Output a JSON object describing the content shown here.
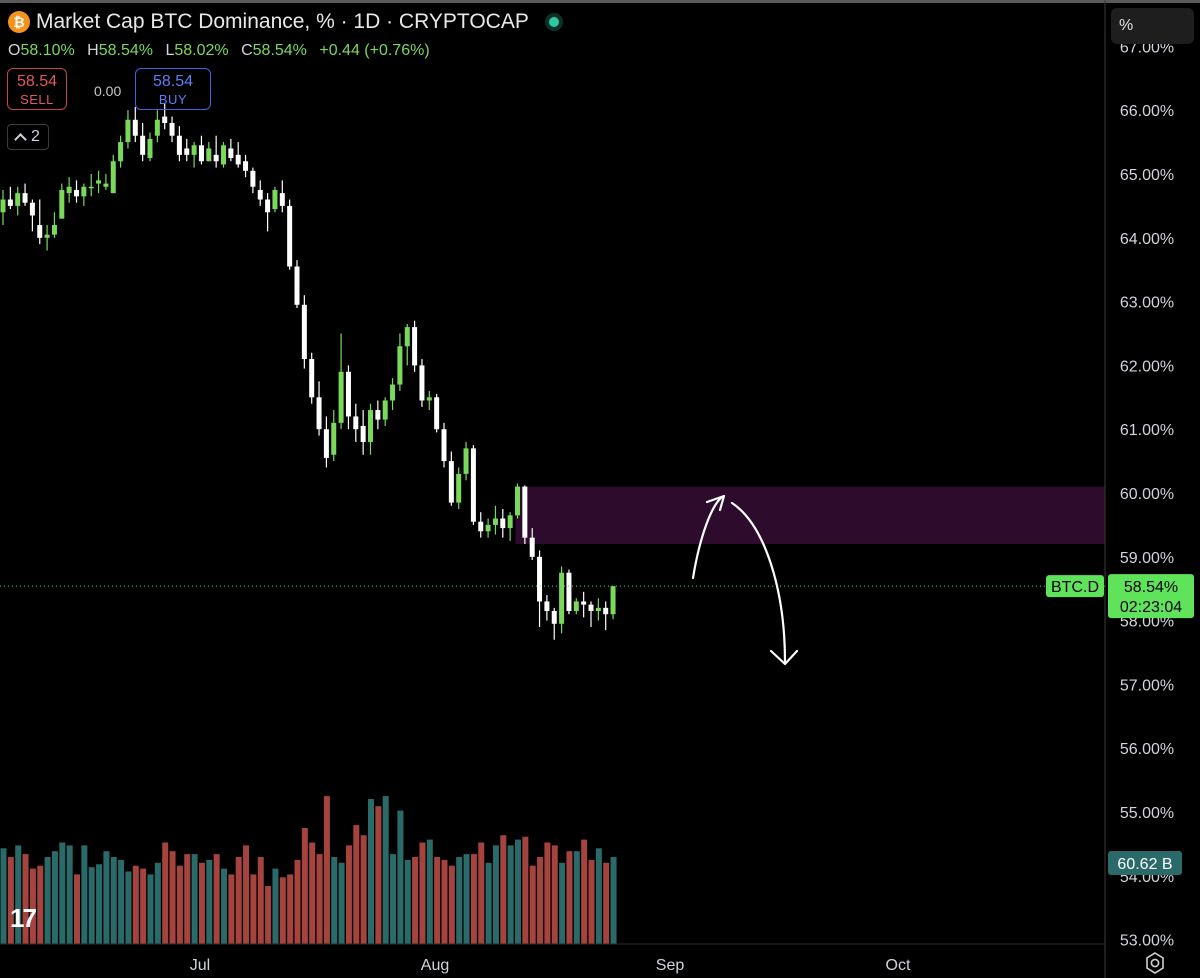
{
  "header": {
    "title": "Market Cap BTC Dominance, % · 1D · CRYPTOCAP",
    "logo_text": "₿"
  },
  "ohlc": {
    "o_key": "O",
    "o": "58.10%",
    "h_key": "H",
    "h": "58.54%",
    "l_key": "L",
    "l": "58.02%",
    "c_key": "C",
    "c": "58.54%",
    "change": "+0.44 (+0.76%)"
  },
  "trade": {
    "sell_price": "58.54",
    "sell_label": "SELL",
    "spread": "0.00",
    "buy_price": "58.54",
    "buy_label": "BUY"
  },
  "indicators_count": "2",
  "scale_mode": "%",
  "colors": {
    "up": "#7ad95a",
    "down": "#ffffff",
    "vol_up": "#2a6b6a",
    "vol_down": "#a5443f",
    "zone": "#2d0b2c",
    "last_price_bg": "#5ee35b"
  },
  "chart_data": {
    "type": "candlestick",
    "title": "Market Cap BTC Dominance, %",
    "interval": "1D",
    "ylabel": "%",
    "ylim": [
      53.0,
      67.0
    ],
    "y_ticks": [
      "67.00%",
      "66.00%",
      "65.00%",
      "64.00%",
      "63.00%",
      "62.00%",
      "61.00%",
      "60.00%",
      "59.00%",
      "58.00%",
      "57.00%",
      "56.00%",
      "55.00%",
      "54.00%",
      "53.00%"
    ],
    "x_ticks": [
      "Jul",
      "Aug",
      "Sep",
      "Oct"
    ],
    "candles": [
      [
        64.4,
        64.75,
        64.2,
        64.6
      ],
      [
        64.6,
        64.8,
        64.45,
        64.5
      ],
      [
        64.5,
        64.8,
        64.35,
        64.7
      ],
      [
        64.7,
        64.85,
        64.5,
        64.55
      ],
      [
        64.55,
        64.6,
        64.1,
        64.35
      ],
      [
        64.2,
        64.6,
        63.9,
        64.0
      ],
      [
        64.0,
        64.2,
        63.8,
        64.05
      ],
      [
        64.05,
        64.4,
        64.0,
        64.2
      ],
      [
        64.3,
        64.85,
        64.3,
        64.75
      ],
      [
        64.7,
        64.95,
        64.55,
        64.8
      ],
      [
        64.75,
        64.9,
        64.55,
        64.65
      ],
      [
        64.65,
        64.85,
        64.5,
        64.8
      ],
      [
        64.8,
        65.0,
        64.65,
        64.8
      ],
      [
        64.85,
        65.05,
        64.7,
        64.9
      ],
      [
        64.8,
        65.0,
        64.75,
        64.85
      ],
      [
        64.7,
        65.3,
        64.7,
        65.2
      ],
      [
        65.2,
        65.6,
        65.1,
        65.5
      ],
      [
        65.5,
        66.0,
        65.4,
        65.85
      ],
      [
        65.85,
        66.05,
        65.5,
        65.6
      ],
      [
        65.6,
        65.8,
        65.2,
        65.3
      ],
      [
        65.25,
        65.65,
        65.2,
        65.55
      ],
      [
        65.6,
        66.0,
        65.5,
        65.85
      ],
      [
        65.9,
        66.1,
        65.7,
        65.8
      ],
      [
        65.8,
        65.9,
        65.5,
        65.6
      ],
      [
        65.6,
        65.75,
        65.2,
        65.3
      ],
      [
        65.4,
        65.55,
        65.2,
        65.3
      ],
      [
        65.3,
        65.5,
        65.1,
        65.45
      ],
      [
        65.45,
        65.6,
        65.15,
        65.2
      ],
      [
        65.2,
        65.5,
        65.2,
        65.4
      ],
      [
        65.3,
        65.6,
        65.1,
        65.2
      ],
      [
        65.15,
        65.5,
        65.1,
        65.45
      ],
      [
        65.4,
        65.55,
        65.2,
        65.25
      ],
      [
        65.3,
        65.5,
        65.1,
        65.15
      ],
      [
        65.2,
        65.3,
        64.95,
        65.05
      ],
      [
        65.05,
        65.1,
        64.7,
        64.8
      ],
      [
        64.75,
        64.9,
        64.5,
        64.6
      ],
      [
        64.6,
        64.7,
        64.1,
        64.4
      ],
      [
        64.45,
        64.8,
        64.4,
        64.75
      ],
      [
        64.7,
        64.9,
        64.4,
        64.5
      ],
      [
        64.5,
        64.6,
        63.5,
        63.55
      ],
      [
        63.55,
        63.65,
        62.9,
        62.95
      ],
      [
        62.95,
        63.1,
        61.95,
        62.1
      ],
      [
        62.1,
        62.2,
        61.4,
        61.5
      ],
      [
        61.5,
        61.75,
        60.9,
        61.0
      ],
      [
        61.0,
        61.2,
        60.4,
        60.55
      ],
      [
        60.6,
        61.3,
        60.5,
        61.1
      ],
      [
        61.1,
        62.5,
        61.0,
        61.9
      ],
      [
        61.9,
        62.0,
        61.0,
        61.2
      ],
      [
        61.2,
        61.4,
        60.8,
        61.0
      ],
      [
        61.05,
        61.3,
        60.6,
        60.8
      ],
      [
        60.8,
        61.4,
        60.6,
        61.3
      ],
      [
        61.3,
        61.45,
        61.0,
        61.15
      ],
      [
        61.15,
        61.5,
        61.05,
        61.45
      ],
      [
        61.45,
        61.8,
        61.3,
        61.7
      ],
      [
        61.7,
        62.5,
        61.6,
        62.3
      ],
      [
        62.3,
        62.65,
        62.0,
        62.6
      ],
      [
        62.6,
        62.7,
        61.9,
        62.0
      ],
      [
        62.0,
        62.1,
        61.35,
        61.45
      ],
      [
        61.45,
        61.6,
        61.3,
        61.5
      ],
      [
        61.5,
        61.55,
        60.95,
        61.0
      ],
      [
        61.0,
        61.1,
        60.4,
        60.5
      ],
      [
        60.5,
        60.65,
        59.8,
        59.85
      ],
      [
        59.85,
        60.4,
        59.75,
        60.3
      ],
      [
        60.3,
        60.8,
        60.2,
        60.7
      ],
      [
        60.7,
        60.75,
        59.5,
        59.55
      ],
      [
        59.55,
        59.7,
        59.3,
        59.4
      ],
      [
        59.4,
        59.6,
        59.3,
        59.5
      ],
      [
        59.5,
        59.8,
        59.35,
        59.6
      ],
      [
        59.6,
        59.75,
        59.3,
        59.45
      ],
      [
        59.45,
        59.7,
        59.25,
        59.65
      ],
      [
        59.65,
        60.15,
        59.6,
        60.1
      ],
      [
        60.1,
        60.12,
        59.2,
        59.3
      ],
      [
        59.3,
        59.45,
        58.95,
        59.0
      ],
      [
        59.0,
        59.1,
        57.9,
        58.3
      ],
      [
        58.3,
        58.4,
        58.0,
        58.15
      ],
      [
        58.15,
        58.2,
        57.7,
        57.95
      ],
      [
        57.95,
        58.85,
        57.8,
        58.75
      ],
      [
        58.75,
        58.8,
        58.1,
        58.15
      ],
      [
        58.15,
        58.35,
        58.1,
        58.3
      ],
      [
        58.3,
        58.45,
        58.05,
        58.25
      ],
      [
        58.25,
        58.3,
        57.9,
        58.15
      ],
      [
        58.15,
        58.35,
        58.0,
        58.2
      ],
      [
        58.2,
        58.3,
        57.85,
        58.1
      ],
      [
        58.1,
        58.54,
        58.02,
        58.54
      ]
    ],
    "volume": [
      [
        0,
        0
      ],
      [
        0,
        0
      ],
      [
        0,
        1
      ],
      [
        0,
        1
      ],
      [
        0,
        0
      ],
      [
        0,
        0
      ],
      [
        0,
        0
      ],
      [
        1,
        1
      ],
      [
        0,
        0
      ],
      [
        0,
        0
      ],
      [
        0,
        0
      ],
      [
        1,
        1
      ],
      [
        0,
        0
      ],
      [
        0,
        1
      ],
      [
        0,
        0
      ],
      [
        1,
        1
      ],
      [
        1,
        0
      ],
      [
        1,
        1
      ],
      [
        0,
        0
      ],
      [
        0,
        0
      ],
      [
        0,
        1
      ],
      [
        1,
        0
      ],
      [
        0,
        0
      ],
      [
        0,
        1
      ],
      [
        0,
        0
      ],
      [
        0,
        0
      ],
      [
        0,
        0
      ],
      [
        1,
        0
      ],
      [
        0,
        0
      ],
      [
        1,
        1
      ],
      [
        1,
        0
      ],
      [
        1,
        1
      ],
      [
        1,
        0
      ],
      [
        0,
        0
      ],
      [
        0,
        1
      ],
      [
        1,
        1
      ],
      [
        0,
        0
      ],
      [
        1,
        1
      ],
      [
        1,
        0
      ],
      [
        1,
        2
      ],
      [
        1,
        1
      ],
      [
        1,
        1
      ],
      [
        1,
        0
      ],
      [
        1,
        1
      ],
      [
        0,
        0
      ],
      [
        1,
        0
      ],
      [
        0,
        1
      ],
      [
        0,
        0
      ],
      [
        1,
        0
      ],
      [
        0,
        0
      ],
      [
        0,
        1
      ],
      [
        1,
        1
      ],
      [
        1,
        0
      ],
      [
        1,
        0
      ],
      [
        1,
        1
      ],
      [
        1,
        1
      ],
      [
        0,
        0
      ],
      [
        1,
        1
      ],
      [
        1,
        0
      ],
      [
        0,
        1
      ],
      [
        1,
        1
      ],
      [
        0,
        0
      ],
      [
        1,
        1
      ],
      [
        1,
        1
      ],
      [
        0,
        0
      ],
      [
        1,
        1
      ],
      [
        0,
        0
      ],
      [
        0,
        0
      ],
      [
        1,
        0
      ],
      [
        0,
        1
      ],
      [
        1,
        0
      ],
      [
        0,
        0
      ],
      [
        1,
        0
      ],
      [
        1,
        0
      ],
      [
        0,
        0
      ],
      [
        1,
        1
      ],
      [
        0,
        0
      ],
      [
        0,
        1
      ],
      [
        0,
        0
      ],
      [
        1,
        0
      ],
      [
        0,
        0
      ],
      [
        1,
        1
      ],
      [
        0,
        0
      ],
      [
        1,
        1
      ]
    ],
    "volume_values_B": [
      66,
      60,
      68,
      62,
      52,
      54,
      60,
      64,
      70,
      68,
      48,
      68,
      53,
      55,
      64,
      60,
      58,
      50,
      54,
      52,
      48,
      56,
      70,
      64,
      54,
      62,
      62,
      56,
      58,
      62,
      52,
      48,
      60,
      68,
      48,
      60,
      40,
      52,
      46,
      48,
      58,
      80,
      70,
      62,
      102,
      60,
      56,
      68,
      82,
      75,
      100,
      95,
      102,
      62,
      92,
      58,
      60,
      70,
      72,
      60,
      58,
      54,
      60,
      62,
      62,
      70,
      56,
      68,
      75,
      68,
      72,
      74,
      54,
      60,
      70,
      68,
      56,
      64,
      64,
      72,
      58,
      66,
      56,
      60
    ],
    "last_value": "60.62 B",
    "zone": {
      "from": 59.2,
      "to": 60.1,
      "label": ""
    },
    "projection": "up to ~60.0% then down to ~57.6%",
    "symbol": "BTC.D",
    "last_price_label": "58.54%",
    "countdown": "02:23:04",
    "grid": false,
    "legend": "top-left"
  }
}
